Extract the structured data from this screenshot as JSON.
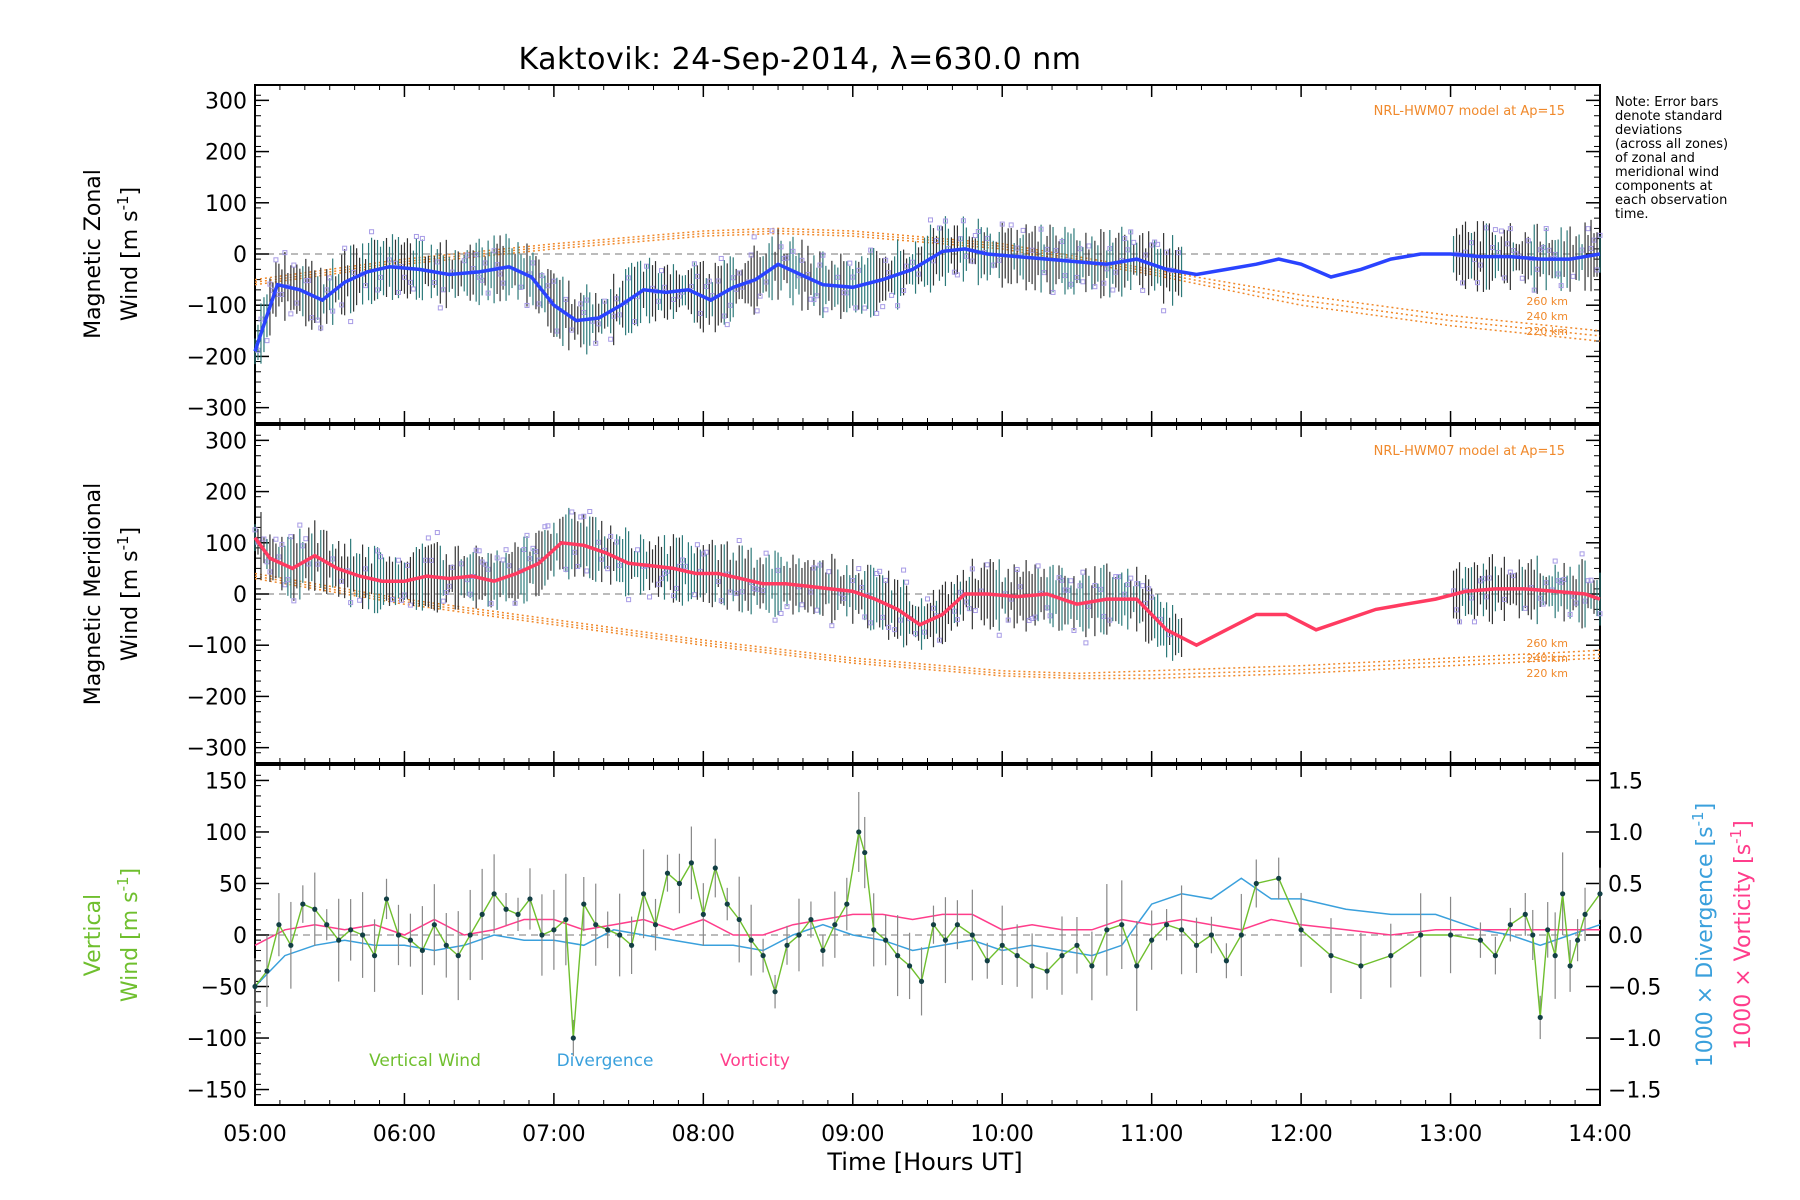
{
  "title": "Kaktovik: 24-Sep-2014, λ=630.0 nm",
  "note": [
    "Note: Error bars",
    "denote standard",
    "deviations",
    "(across all zones)",
    "of zonal and",
    "meridional wind",
    "components at",
    "each observation",
    "time."
  ],
  "x_axis": {
    "label": "Time [Hours UT]",
    "ticks": [
      "05:00",
      "06:00",
      "07:00",
      "08:00",
      "09:00",
      "10:00",
      "11:00",
      "12:00",
      "13:00",
      "14:00"
    ],
    "range": [
      5,
      14
    ]
  },
  "colors": {
    "zonal": "#2a43ff",
    "meridional": "#ff3b61",
    "vertical": "#6fbf2e",
    "divergence": "#3aa0dc",
    "vorticity": "#ff3d8b",
    "model": "#f0892b",
    "scatter": "#a79be6",
    "errorbar": "#333333"
  },
  "chart_data": [
    {
      "type": "line",
      "panel": "zonal",
      "ylabel_line1": "Magnetic Zonal",
      "ylabel_line2": "Wind [m s",
      "ylabel_sup": "-1",
      "ylabel_close": "]",
      "ylim": [
        -330,
        330
      ],
      "yticks": [
        "300",
        "200",
        "100",
        "0",
        "−100",
        "−200",
        "−300"
      ],
      "ytick_values": [
        300,
        200,
        100,
        0,
        -100,
        -200,
        -300
      ],
      "model_label": "NRL-HWM07 model at Ap=15",
      "altitudes": [
        "260 km",
        "240 km",
        "220 km"
      ],
      "series": [
        {
          "name": "Zonal Wind",
          "x": [
            5.0,
            5.15,
            5.3,
            5.45,
            5.6,
            5.75,
            5.9,
            6.1,
            6.3,
            6.5,
            6.7,
            6.85,
            7.0,
            7.15,
            7.3,
            7.45,
            7.6,
            7.75,
            7.9,
            8.05,
            8.2,
            8.35,
            8.5,
            8.65,
            8.8,
            9.0,
            9.2,
            9.4,
            9.6,
            9.75,
            9.9,
            10.1,
            10.3,
            10.5,
            10.7,
            10.9,
            11.1,
            11.3,
            11.5,
            11.7,
            11.85,
            12.0,
            12.2,
            12.4,
            12.6,
            12.8,
            13.0,
            13.2,
            13.4,
            13.6,
            13.8,
            14.0
          ],
          "y": [
            -190,
            -60,
            -70,
            -90,
            -55,
            -35,
            -25,
            -30,
            -40,
            -35,
            -25,
            -45,
            -100,
            -130,
            -125,
            -100,
            -70,
            -75,
            -70,
            -90,
            -65,
            -50,
            -20,
            -40,
            -60,
            -65,
            -50,
            -30,
            5,
            10,
            0,
            -5,
            -10,
            -15,
            -20,
            -10,
            -30,
            -40,
            -30,
            -20,
            -10,
            -20,
            -45,
            -30,
            -10,
            0,
            0,
            -5,
            -5,
            -10,
            -10,
            0
          ]
        },
        {
          "name": "260 km",
          "x": [
            5,
            6,
            7,
            8,
            8.5,
            9,
            10,
            11,
            12,
            13,
            14
          ],
          "y": [
            -50,
            -10,
            20,
            45,
            50,
            45,
            20,
            -30,
            -80,
            -120,
            -150
          ]
        },
        {
          "name": "240 km",
          "x": [
            5,
            6,
            7,
            8,
            8.5,
            9,
            10,
            11,
            12,
            13,
            14
          ],
          "y": [
            -55,
            -15,
            15,
            40,
            45,
            40,
            15,
            -35,
            -90,
            -130,
            -160
          ]
        },
        {
          "name": "220 km",
          "x": [
            5,
            6,
            7,
            8,
            8.5,
            9,
            10,
            11,
            12,
            13,
            14
          ],
          "y": [
            -60,
            -20,
            10,
            35,
            40,
            35,
            10,
            -40,
            -100,
            -140,
            -170
          ]
        }
      ]
    },
    {
      "type": "line",
      "panel": "meridional",
      "ylabel_line1": "Magnetic Meridional",
      "ylabel_line2": "Wind [m s",
      "ylabel_sup": "-1",
      "ylabel_close": "]",
      "ylim": [
        -330,
        330
      ],
      "yticks": [
        "300",
        "200",
        "100",
        "0",
        "−100",
        "−200",
        "−300"
      ],
      "ytick_values": [
        300,
        200,
        100,
        0,
        -100,
        -200,
        -300
      ],
      "model_label": "NRL-HWM07 model at Ap=15",
      "altitudes": [
        "260 km",
        "240 km",
        "220 km"
      ],
      "series": [
        {
          "name": "Meridional Wind",
          "x": [
            5.0,
            5.1,
            5.25,
            5.4,
            5.55,
            5.7,
            5.85,
            6.0,
            6.15,
            6.3,
            6.45,
            6.6,
            6.75,
            6.9,
            7.05,
            7.2,
            7.35,
            7.5,
            7.65,
            7.8,
            7.95,
            8.1,
            8.25,
            8.4,
            8.55,
            8.7,
            8.85,
            9.0,
            9.15,
            9.3,
            9.45,
            9.6,
            9.75,
            9.9,
            10.1,
            10.3,
            10.5,
            10.7,
            10.9,
            11.1,
            11.3,
            11.5,
            11.7,
            11.9,
            12.1,
            12.3,
            12.5,
            12.7,
            12.9,
            13.1,
            13.3,
            13.5,
            13.7,
            13.9,
            14.0
          ],
          "y": [
            110,
            70,
            50,
            75,
            50,
            35,
            25,
            25,
            35,
            30,
            35,
            25,
            40,
            60,
            100,
            95,
            80,
            60,
            55,
            50,
            40,
            40,
            30,
            20,
            20,
            15,
            10,
            5,
            -10,
            -30,
            -60,
            -40,
            0,
            0,
            -5,
            0,
            -20,
            -10,
            -10,
            -70,
            -100,
            -70,
            -40,
            -40,
            -70,
            -50,
            -30,
            -20,
            -10,
            5,
            10,
            10,
            5,
            0,
            -10
          ]
        },
        {
          "name": "260 km",
          "x": [
            5,
            6,
            7,
            8,
            9,
            10,
            10.5,
            11,
            12,
            13,
            14
          ],
          "y": [
            40,
            -10,
            -50,
            -90,
            -125,
            -150,
            -155,
            -150,
            -140,
            -125,
            -110
          ]
        },
        {
          "name": "240 km",
          "x": [
            5,
            6,
            7,
            8,
            9,
            10,
            10.5,
            11,
            12,
            13,
            14
          ],
          "y": [
            35,
            -15,
            -55,
            -95,
            -130,
            -155,
            -160,
            -158,
            -148,
            -132,
            -118
          ]
        },
        {
          "name": "220 km",
          "x": [
            5,
            6,
            7,
            8,
            9,
            10,
            10.5,
            11,
            12,
            13,
            14
          ],
          "y": [
            30,
            -20,
            -60,
            -100,
            -135,
            -160,
            -165,
            -165,
            -155,
            -140,
            -125
          ]
        }
      ]
    },
    {
      "type": "line",
      "panel": "vertical",
      "ylabel_line1": "Vertical",
      "ylabel_line2": "Wind [m s",
      "ylabel_sup": "-1",
      "ylabel_close": "]",
      "ylim": [
        -165,
        165
      ],
      "yticks": [
        "150",
        "100",
        "50",
        "0",
        "−50",
        "−100",
        "−150"
      ],
      "ytick_values": [
        150,
        100,
        50,
        0,
        -50,
        -100,
        -150
      ],
      "y2label_div_a": "1000 × Divergence [s",
      "y2label_vor_a": "1000 × Vorticity [s",
      "y2label_sup": "-1",
      "y2label_close": "]",
      "y2lim": [
        -1.65,
        1.65
      ],
      "y2ticks": [
        "1.5",
        "1.0",
        "0.5",
        "0.0",
        "−0.5",
        "−1.0",
        "−1.5"
      ],
      "y2tick_values": [
        1.5,
        1.0,
        0.5,
        0.0,
        -0.5,
        -1.0,
        -1.5
      ],
      "legend": [
        "Vertical Wind",
        "Divergence",
        "Vorticity"
      ],
      "series": [
        {
          "name": "Vertical Wind",
          "x": [
            5.0,
            5.08,
            5.16,
            5.24,
            5.32,
            5.4,
            5.48,
            5.56,
            5.64,
            5.72,
            5.8,
            5.88,
            5.96,
            6.04,
            6.12,
            6.2,
            6.28,
            6.36,
            6.44,
            6.52,
            6.6,
            6.68,
            6.76,
            6.84,
            6.92,
            7.0,
            7.08,
            7.13,
            7.2,
            7.28,
            7.36,
            7.44,
            7.52,
            7.6,
            7.68,
            7.76,
            7.84,
            7.92,
            8.0,
            8.08,
            8.16,
            8.24,
            8.32,
            8.4,
            8.48,
            8.56,
            8.64,
            8.72,
            8.8,
            8.88,
            8.96,
            9.04,
            9.08,
            9.14,
            9.22,
            9.3,
            9.38,
            9.46,
            9.54,
            9.62,
            9.7,
            9.8,
            9.9,
            10.0,
            10.1,
            10.2,
            10.3,
            10.4,
            10.5,
            10.6,
            10.7,
            10.8,
            10.9,
            11.0,
            11.1,
            11.2,
            11.3,
            11.4,
            11.5,
            11.6,
            11.7,
            11.85,
            12.0,
            12.2,
            12.4,
            12.6,
            12.8,
            13.0,
            13.2,
            13.3,
            13.4,
            13.5,
            13.55,
            13.6,
            13.65,
            13.7,
            13.75,
            13.8,
            13.85,
            13.9,
            14.0
          ],
          "y": [
            -50,
            -35,
            10,
            -10,
            30,
            25,
            10,
            -5,
            5,
            0,
            -20,
            35,
            0,
            -5,
            -15,
            10,
            -10,
            -20,
            0,
            20,
            40,
            25,
            20,
            35,
            0,
            5,
            15,
            -100,
            30,
            10,
            5,
            0,
            -10,
            40,
            10,
            60,
            50,
            70,
            20,
            65,
            30,
            15,
            -5,
            -20,
            -55,
            -10,
            0,
            15,
            -15,
            10,
            30,
            100,
            80,
            5,
            -5,
            -20,
            -30,
            -45,
            10,
            -5,
            10,
            0,
            -25,
            -10,
            -20,
            -30,
            -35,
            -20,
            -10,
            -30,
            5,
            10,
            -30,
            -5,
            10,
            5,
            -10,
            0,
            -25,
            0,
            50,
            55,
            5,
            -20,
            -30,
            -20,
            0,
            0,
            -5,
            -20,
            10,
            20,
            0,
            -80,
            5,
            -20,
            40,
            -30,
            -5,
            20,
            40
          ]
        },
        {
          "name": "Divergence",
          "x": [
            5.0,
            5.2,
            5.4,
            5.6,
            5.8,
            6.0,
            6.2,
            6.4,
            6.6,
            6.8,
            7.0,
            7.2,
            7.4,
            7.6,
            7.8,
            8.0,
            8.2,
            8.4,
            8.6,
            8.8,
            9.0,
            9.2,
            9.4,
            9.6,
            9.8,
            10.0,
            10.2,
            10.4,
            10.6,
            10.8,
            11.0,
            11.2,
            11.4,
            11.6,
            11.8,
            12.0,
            12.3,
            12.6,
            12.9,
            13.2,
            13.4,
            13.6,
            13.8,
            14.0
          ],
          "y": [
            -0.5,
            -0.2,
            -0.1,
            -0.05,
            -0.1,
            -0.1,
            -0.15,
            -0.1,
            0.0,
            -0.05,
            -0.05,
            -0.1,
            0.05,
            0.0,
            -0.05,
            -0.1,
            -0.1,
            -0.15,
            0.0,
            0.1,
            0.0,
            -0.05,
            -0.15,
            -0.1,
            -0.05,
            -0.15,
            -0.1,
            -0.15,
            -0.2,
            -0.1,
            0.3,
            0.4,
            0.35,
            0.55,
            0.35,
            0.35,
            0.25,
            0.2,
            0.2,
            0.05,
            0.0,
            -0.1,
            0.0,
            0.1
          ]
        },
        {
          "name": "Vorticity",
          "x": [
            5.0,
            5.2,
            5.4,
            5.6,
            5.8,
            6.0,
            6.2,
            6.4,
            6.6,
            6.8,
            7.0,
            7.2,
            7.4,
            7.6,
            7.8,
            8.0,
            8.2,
            8.4,
            8.6,
            8.8,
            9.0,
            9.2,
            9.4,
            9.6,
            9.8,
            10.0,
            10.2,
            10.4,
            10.6,
            10.8,
            11.0,
            11.2,
            11.4,
            11.6,
            11.8,
            12.0,
            12.3,
            12.6,
            12.9,
            13.2,
            13.4,
            13.6,
            13.8,
            14.0
          ],
          "y": [
            -0.1,
            0.05,
            0.1,
            0.05,
            0.1,
            0.0,
            0.15,
            0.0,
            0.05,
            0.15,
            0.15,
            0.05,
            0.1,
            0.15,
            0.05,
            0.15,
            0.0,
            0.0,
            0.1,
            0.15,
            0.2,
            0.2,
            0.15,
            0.2,
            0.2,
            0.05,
            0.1,
            0.05,
            0.05,
            0.15,
            0.1,
            0.15,
            0.1,
            0.05,
            0.15,
            0.1,
            0.05,
            0.0,
            0.05,
            0.05,
            0.05,
            0.05,
            0.05,
            0.05
          ]
        }
      ]
    }
  ]
}
